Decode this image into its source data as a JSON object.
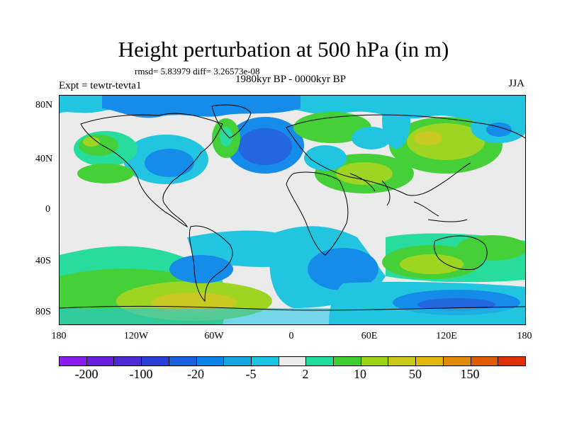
{
  "title": "Height perturbation at 500 hPa (in m)",
  "stats": "rmsd= 5.83979 diff= 3.26573e-08",
  "left_label": "Expt = tewtr-tevta1",
  "center_label": "1980kyr BP - 0000kyr BP",
  "right_label": "JJA",
  "lat_labels": [
    "80N",
    "40N",
    "0",
    "40S",
    "80S"
  ],
  "lon_labels": [
    "180",
    "120W",
    "60W",
    "0",
    "60E",
    "120E",
    "180"
  ],
  "colorbar": {
    "colors": [
      "#8a1ef0",
      "#6a1ee0",
      "#4c2ad8",
      "#2a3fd8",
      "#1a5fe0",
      "#0a86ea",
      "#11a8e0",
      "#18c4e0",
      "#ebebeb",
      "#1edc9a",
      "#3ecf2e",
      "#9ad418",
      "#c8c818",
      "#e0b810",
      "#e08a0a",
      "#e05a06",
      "#e03008"
    ],
    "labels": [
      "-200",
      "-100",
      "-20",
      "-5",
      "2",
      "10",
      "50",
      "150"
    ]
  },
  "legend_colors": {
    "land_fill": "#ebebeb",
    "coast": "#000000"
  }
}
